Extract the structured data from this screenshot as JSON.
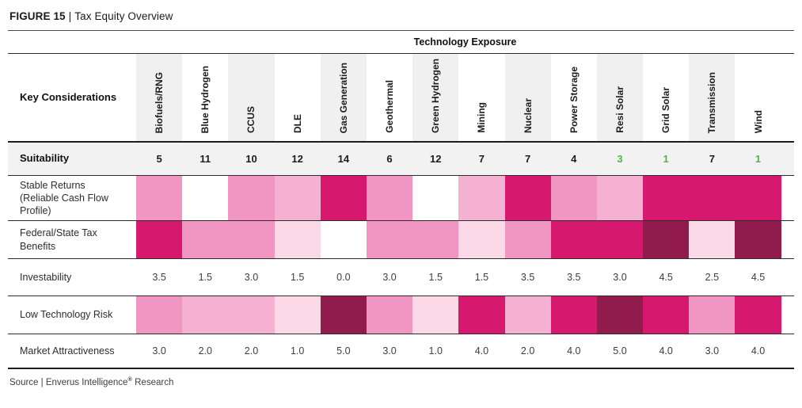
{
  "figure": {
    "label": "FIGURE 15",
    "separator": "|",
    "title": "Tax Equity Overview"
  },
  "table": {
    "group_header": "Technology Exposure",
    "row_header_title": "Key Considerations",
    "green_color": "#55b24c",
    "stripe_color": "#f0f0f0",
    "suitability_bg": "#f2f2f2"
  },
  "chart_data": {
    "type": "heatmap",
    "title": "FIGURE 15 | Tax Equity Overview",
    "group_header": "Technology Exposure",
    "columns": [
      "Biofuels/RNG",
      "Blue Hydrogen",
      "CCUS",
      "DLE",
      "Gas Generation",
      "Geothermal",
      "Green Hydrogen",
      "Mining",
      "Nuclear",
      "Power Storage",
      "Resi Solar",
      "Grid Solar",
      "Transmission",
      "Wind"
    ],
    "color_scale": {
      "0": "#ffffff",
      "1": "#fbd9e7",
      "2": "#f4b1d1",
      "3": "#f195c2",
      "4": "#d6186f",
      "5": "#921b4d"
    },
    "rows": [
      {
        "label": "Suitability",
        "kind": "rank",
        "values": [
          5,
          11,
          10,
          12,
          14,
          6,
          12,
          7,
          7,
          4,
          3,
          1,
          7,
          1
        ],
        "green_cols": [
          10,
          11,
          13
        ]
      },
      {
        "label": "Stable Returns (Reliable Cash Flow Profile)",
        "kind": "color_scale_0_5",
        "values": [
          3,
          0,
          3,
          2,
          4,
          3,
          0,
          2,
          4,
          3,
          2,
          4,
          4,
          4
        ]
      },
      {
        "label": "Federal/State Tax Benefits",
        "kind": "color_scale_0_5",
        "values": [
          4,
          3,
          3,
          1,
          0,
          3,
          3,
          1,
          3,
          4,
          4,
          5,
          1,
          5
        ]
      },
      {
        "label": "Investability",
        "kind": "score",
        "values": [
          3.5,
          1.5,
          3.0,
          1.5,
          0.0,
          3.0,
          1.5,
          1.5,
          3.5,
          3.5,
          3.0,
          4.5,
          2.5,
          4.5
        ]
      },
      {
        "label": "Low Technology Risk",
        "kind": "color_scale_0_5",
        "values": [
          3,
          2,
          2,
          1,
          5,
          3,
          1,
          4,
          2,
          4,
          5,
          4,
          3,
          4
        ]
      },
      {
        "label": "Market Attractiveness",
        "kind": "score",
        "values": [
          3.0,
          2.0,
          2.0,
          1.0,
          5.0,
          3.0,
          1.0,
          4.0,
          2.0,
          4.0,
          5.0,
          4.0,
          3.0,
          4.0
        ]
      }
    ]
  },
  "source": {
    "prefix": "Source | Enverus Intelligence",
    "reg_mark": "®",
    "suffix": " Research"
  }
}
